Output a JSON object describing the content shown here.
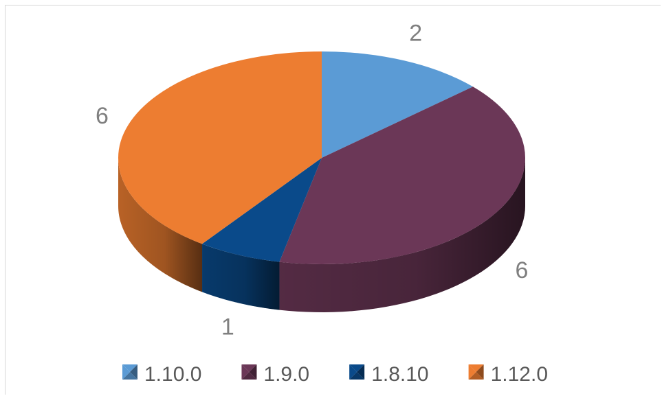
{
  "chart_data": {
    "type": "pie",
    "style": "3d",
    "legend_position": "bottom",
    "slices": [
      {
        "label": "1.10.0",
        "value": 2,
        "color": "#5b9bd5"
      },
      {
        "label": "1.9.0",
        "value": 6,
        "color": "#6b3757"
      },
      {
        "label": "1.8.10",
        "value": 1,
        "color": "#0a4a8a"
      },
      {
        "label": "1.12.0",
        "value": 6,
        "color": "#ed7d31"
      }
    ]
  }
}
